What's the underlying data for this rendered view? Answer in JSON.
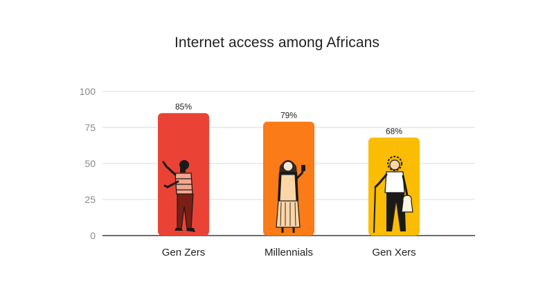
{
  "chart_data": {
    "type": "bar",
    "title": "Internet access among Africans",
    "categories": [
      "Gen Zers",
      "Millennials",
      "Gen Xers"
    ],
    "values": [
      85,
      79,
      68
    ],
    "data_labels": [
      "85%",
      "79%",
      "68%"
    ],
    "ylim": [
      0,
      100
    ],
    "yticks": [
      0,
      25,
      50,
      75,
      100
    ],
    "xlabel": "",
    "ylabel": "",
    "grid": true,
    "bar_colors": [
      "#ea4335",
      "#fa7b17",
      "#fbbc04"
    ],
    "grid_color": "#d9d9d9",
    "axis_color": "#3c3c3c",
    "illustrations": [
      "gen-zer-figure",
      "millennial-figure",
      "gen-xer-figure"
    ]
  }
}
